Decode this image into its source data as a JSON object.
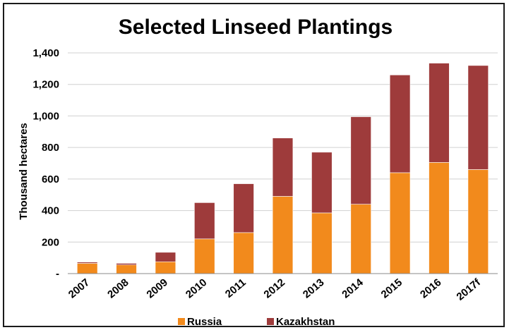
{
  "chart_data": {
    "type": "bar",
    "stacked": true,
    "title": "Selected Linseed Plantings",
    "xlabel": "",
    "ylabel": "Thousand hectares",
    "categories": [
      "2007",
      "2008",
      "2009",
      "2010",
      "2011",
      "2012",
      "2013",
      "2014",
      "2015",
      "2016",
      "2017f"
    ],
    "series": [
      {
        "name": "Russia",
        "color": "#f28a1c",
        "values": [
          65,
          55,
          75,
          220,
          260,
          490,
          385,
          440,
          640,
          705,
          660
        ]
      },
      {
        "name": "Kazakhstan",
        "color": "#9e3b3b",
        "values": [
          8,
          10,
          60,
          230,
          310,
          370,
          385,
          555,
          620,
          630,
          660
        ]
      }
    ],
    "ylim": [
      0,
      1400
    ],
    "yticks": [
      "-",
      "200",
      "400",
      "600",
      "800",
      "1,000",
      "1,200",
      "1,400"
    ],
    "ytick_values": [
      0,
      200,
      400,
      600,
      800,
      1000,
      1200,
      1400
    ],
    "grid": true,
    "legend_position": "bottom"
  }
}
